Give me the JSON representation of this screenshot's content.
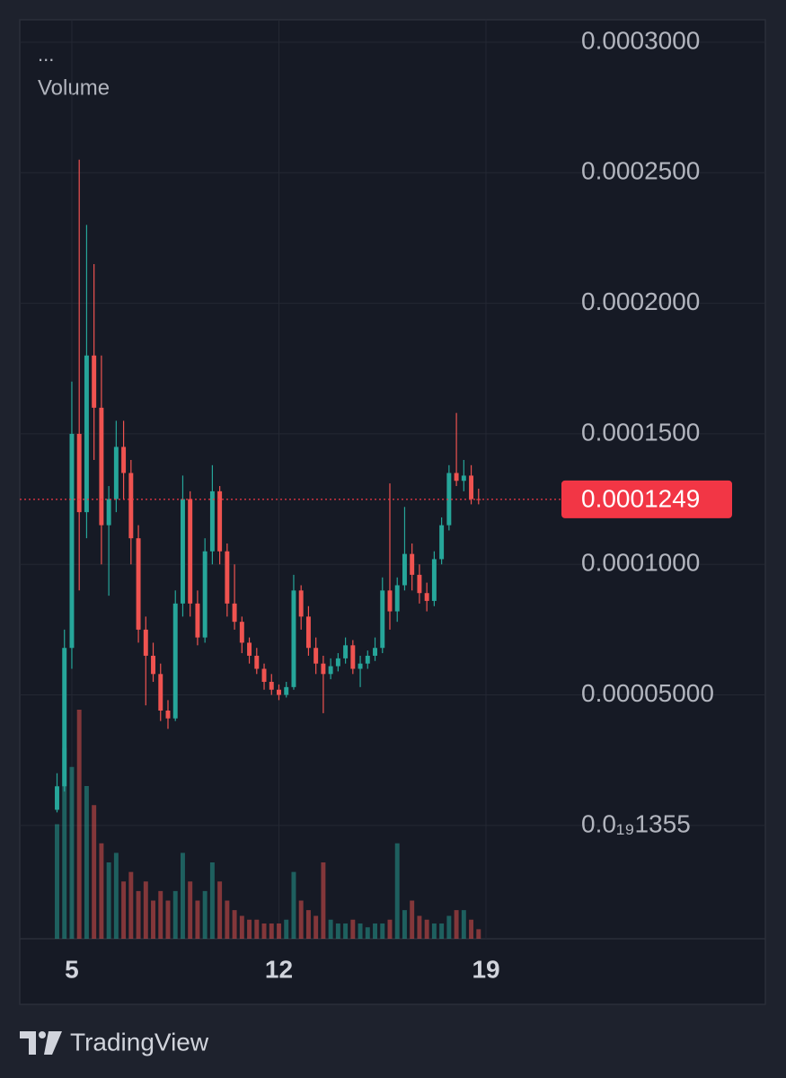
{
  "chart_data": {
    "type": "candlestick",
    "legend_dots": "...",
    "volume_label": "Volume",
    "x": [
      4.5,
      4.75,
      5,
      5.25,
      5.5,
      5.75,
      6,
      6.25,
      6.5,
      6.75,
      7,
      7.25,
      7.5,
      7.75,
      8,
      8.25,
      8.5,
      8.75,
      9,
      9.25,
      9.5,
      9.75,
      10,
      10.25,
      10.5,
      10.75,
      11,
      11.25,
      11.5,
      11.75,
      12,
      12.25,
      12.5,
      12.75,
      13,
      13.25,
      13.5,
      13.75,
      14,
      14.25,
      14.5,
      14.75,
      15,
      15.25,
      15.5,
      15.75,
      16,
      16.25,
      16.5,
      16.75,
      17,
      17.25,
      17.5,
      17.75,
      18,
      18.25,
      18.5,
      18.75
    ],
    "open": [
      6e-06,
      1.5e-05,
      6.8e-05,
      0.00015,
      0.00012,
      0.00018,
      0.00016,
      0.000115,
      0.000125,
      0.000145,
      0.000135,
      0.00011,
      7.5e-05,
      6.5e-05,
      5.8e-05,
      4.4e-05,
      4.1e-05,
      8.5e-05,
      0.000125,
      8.5e-05,
      7.2e-05,
      0.000105,
      0.000128,
      0.000105,
      8.5e-05,
      7.8e-05,
      7e-05,
      6.5e-05,
      6e-05,
      5.5e-05,
      5.2e-05,
      5e-05,
      5.3e-05,
      9e-05,
      8e-05,
      6.8e-05,
      6.2e-05,
      5.8e-05,
      6.1e-05,
      6.4e-05,
      6.9e-05,
      6e-05,
      6.2e-05,
      6.5e-05,
      6.8e-05,
      9e-05,
      8.2e-05,
      9.2e-05,
      0.000104,
      9.6e-05,
      8.9e-05,
      8.6e-05,
      0.000102,
      0.000115,
      0.000135,
      0.000132,
      0.000134,
      0.000125
    ],
    "high": [
      2e-05,
      7.5e-05,
      0.00017,
      0.000255,
      0.00023,
      0.000215,
      0.00018,
      0.00013,
      0.000155,
      0.000155,
      0.00014,
      0.000115,
      8e-05,
      7e-05,
      6.2e-05,
      4.8e-05,
      9e-05,
      0.000134,
      0.000128,
      9e-05,
      0.00011,
      0.000138,
      0.00013,
      0.000108,
      0.0001,
      8e-05,
      7.2e-05,
      6.8e-05,
      6.2e-05,
      5.8e-05,
      5.4e-05,
      5.5e-05,
      9.6e-05,
      9.2e-05,
      8.4e-05,
      7.2e-05,
      6.5e-05,
      6.4e-05,
      6.6e-05,
      7.2e-05,
      7.1e-05,
      6.5e-05,
      6.7e-05,
      7.2e-05,
      9.5e-05,
      0.000131,
      9.5e-05,
      0.000122,
      0.000108,
      0.0001,
      9.3e-05,
      0.000105,
      0.000118,
      0.000138,
      0.000158,
      0.00014,
      0.000138,
      0.000129
    ],
    "low": [
      5e-06,
      1.3e-05,
      6e-05,
      9e-05,
      0.00011,
      0.00014,
      0.0001,
      8.8e-05,
      0.00012,
      0.000125,
      0.0001,
      7e-05,
      4.6e-05,
      5.5e-05,
      4e-05,
      3.7e-05,
      4e-05,
      8e-05,
      8e-05,
      6.9e-05,
      7e-05,
      0.0001,
      0.0001,
      8e-05,
      7.5e-05,
      6.6e-05,
      6.2e-05,
      5.8e-05,
      5.2e-05,
      5e-05,
      4.8e-05,
      4.9e-05,
      5.2e-05,
      7.5e-05,
      6.5e-05,
      5.8e-05,
      4.3e-05,
      5.6e-05,
      5.9e-05,
      6.2e-05,
      5.8e-05,
      5.3e-05,
      6e-05,
      6.3e-05,
      6.6e-05,
      7.5e-05,
      7.8e-05,
      9e-05,
      9e-05,
      8.5e-05,
      8.2e-05,
      8.4e-05,
      0.0001,
      0.000113,
      0.00013,
      0.000128,
      0.000123,
      0.000123
    ],
    "close": [
      1.5e-05,
      6.8e-05,
      0.00015,
      0.00012,
      0.00018,
      0.00016,
      0.000115,
      0.000125,
      0.000145,
      0.000135,
      0.00011,
      7.5e-05,
      6.5e-05,
      5.8e-05,
      4.4e-05,
      4.1e-05,
      8.5e-05,
      0.000125,
      8.5e-05,
      7.2e-05,
      0.000105,
      0.000128,
      0.000105,
      8.5e-05,
      7.8e-05,
      7e-05,
      6.5e-05,
      6e-05,
      5.5e-05,
      5.2e-05,
      5e-05,
      5.3e-05,
      9e-05,
      8e-05,
      6.8e-05,
      6.2e-05,
      5.8e-05,
      6.1e-05,
      6.4e-05,
      6.9e-05,
      6e-05,
      6.2e-05,
      6.5e-05,
      6.8e-05,
      9e-05,
      8.2e-05,
      9.2e-05,
      0.000104,
      9.6e-05,
      8.9e-05,
      8.6e-05,
      0.000102,
      0.000115,
      0.000135,
      0.000132,
      0.000134,
      0.000125,
      0.0001249
    ],
    "volume": [
      60,
      100,
      90,
      120,
      80,
      70,
      50,
      40,
      45,
      30,
      35,
      25,
      30,
      20,
      25,
      20,
      25,
      45,
      30,
      20,
      25,
      40,
      30,
      20,
      15,
      12,
      10,
      10,
      8,
      8,
      8,
      10,
      35,
      20,
      15,
      12,
      40,
      10,
      8,
      8,
      10,
      8,
      6,
      8,
      8,
      10,
      50,
      15,
      20,
      12,
      10,
      8,
      8,
      12,
      15,
      15,
      10,
      5
    ],
    "xlim": [
      3.24,
      21.55
    ],
    "xticks": [
      5,
      12,
      19
    ],
    "ylim": [
      -4.34e-05,
      0.0003086
    ],
    "yticks": [
      {
        "value": 1.355e-20,
        "label": "0.0₁₉1355"
      },
      {
        "value": 5e-05,
        "label": "0.00005000"
      },
      {
        "value": 0.0001,
        "label": "0.0001000"
      },
      {
        "value": 0.00015,
        "label": "0.0001500"
      },
      {
        "value": 0.0002,
        "label": "0.0002000"
      },
      {
        "value": 0.00025,
        "label": "0.0002500"
      },
      {
        "value": 0.0003,
        "label": "0.0003000"
      }
    ],
    "last_price": 0.0001249,
    "up_color": "#26a69a",
    "down_color": "#ef5350",
    "grid": true
  },
  "footer": {
    "brand": "TradingView"
  }
}
